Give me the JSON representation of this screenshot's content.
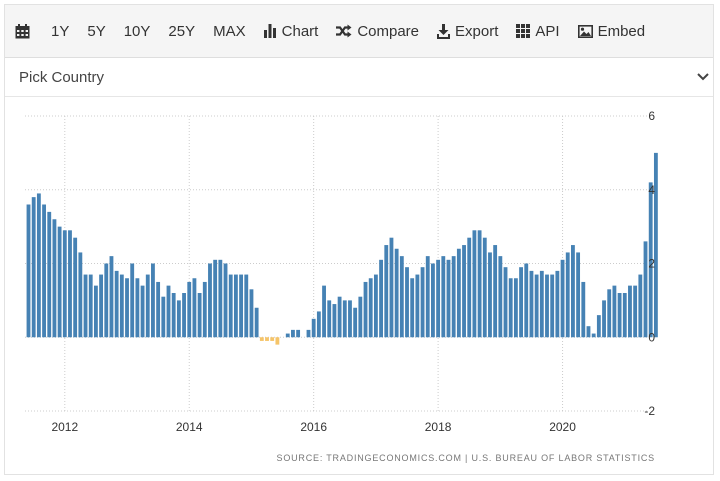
{
  "toolbar": {
    "range_buttons": [
      "1Y",
      "5Y",
      "10Y",
      "25Y",
      "MAX"
    ],
    "chart_label": "Chart",
    "compare_label": "Compare",
    "export_label": "Export",
    "api_label": "API",
    "embed_label": "Embed"
  },
  "country_select": {
    "label": "Pick Country"
  },
  "source": "SOURCE: TRADINGECONOMICS.COM | U.S. BUREAU OF LABOR STATISTICS",
  "colors": {
    "bar_positive": "#4682b4",
    "bar_negative": "#f5c469",
    "grid": "#cccccc"
  },
  "chart_data": {
    "type": "bar",
    "start": "2011-06",
    "frequency": "monthly",
    "x_ticks": [
      "2012",
      "2014",
      "2016",
      "2018",
      "2020"
    ],
    "ylim": [
      -2,
      6
    ],
    "y_ticks": [
      6,
      4,
      2,
      0,
      -2
    ],
    "grid": true,
    "series": [
      {
        "values": [
          3.6,
          3.8,
          3.9,
          3.6,
          3.4,
          3.2,
          3.0,
          2.9,
          2.9,
          2.7,
          2.3,
          1.7,
          1.7,
          1.4,
          1.7,
          2.0,
          2.2,
          1.8,
          1.7,
          1.6,
          2.0,
          1.6,
          1.4,
          1.7,
          2.0,
          1.5,
          1.1,
          1.4,
          1.2,
          1.0,
          1.2,
          1.5,
          1.6,
          1.2,
          1.5,
          2.0,
          2.1,
          2.1,
          2.0,
          1.7,
          1.7,
          1.7,
          1.7,
          1.3,
          0.8,
          -0.1,
          -0.1,
          -0.1,
          -0.2,
          0.0,
          0.1,
          0.2,
          0.2,
          0.0,
          0.2,
          0.5,
          0.7,
          1.4,
          1.0,
          0.9,
          1.1,
          1.0,
          1.0,
          0.8,
          1.1,
          1.5,
          1.6,
          1.7,
          2.1,
          2.5,
          2.7,
          2.4,
          2.2,
          1.9,
          1.6,
          1.7,
          1.9,
          2.2,
          2.0,
          2.1,
          2.2,
          2.1,
          2.2,
          2.4,
          2.5,
          2.7,
          2.9,
          2.9,
          2.7,
          2.3,
          2.5,
          2.2,
          1.9,
          1.6,
          1.6,
          1.9,
          2.0,
          1.8,
          1.7,
          1.8,
          1.7,
          1.7,
          1.8,
          2.1,
          2.3,
          2.5,
          2.3,
          1.5,
          0.3,
          0.1,
          0.6,
          1.0,
          1.3,
          1.4,
          1.2,
          1.2,
          1.4,
          1.4,
          1.7,
          2.6,
          4.2,
          5.0
        ]
      }
    ]
  }
}
